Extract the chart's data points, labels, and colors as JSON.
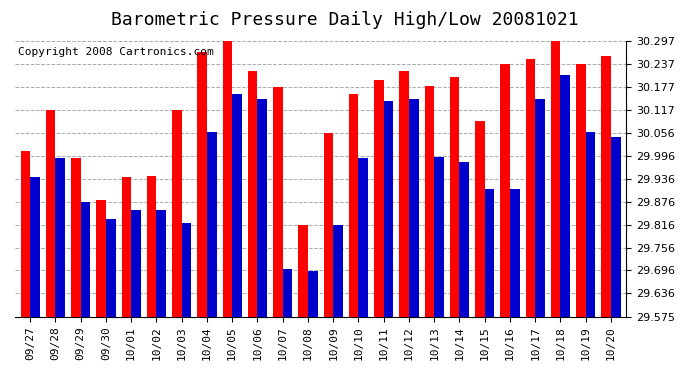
{
  "title": "Barometric Pressure Daily High/Low 20081021",
  "copyright": "Copyright 2008 Cartronics.com",
  "categories": [
    "09/27",
    "09/28",
    "09/29",
    "09/30",
    "10/01",
    "10/02",
    "10/03",
    "10/04",
    "10/05",
    "10/06",
    "10/07",
    "10/08",
    "10/09",
    "10/10",
    "10/11",
    "10/12",
    "10/13",
    "10/14",
    "10/15",
    "10/16",
    "10/17",
    "10/18",
    "10/19",
    "10/20"
  ],
  "highs": [
    30.01,
    30.117,
    29.99,
    29.88,
    29.94,
    29.945,
    30.117,
    30.27,
    30.297,
    30.22,
    30.177,
    29.815,
    30.058,
    30.16,
    30.195,
    30.22,
    30.18,
    30.205,
    30.087,
    30.237,
    30.25,
    30.297,
    30.237,
    30.26
  ],
  "lows": [
    29.94,
    29.99,
    29.875,
    29.83,
    29.855,
    29.855,
    29.82,
    30.06,
    30.16,
    30.147,
    29.7,
    29.695,
    29.815,
    29.99,
    30.14,
    30.147,
    29.995,
    29.98,
    29.91,
    29.91,
    30.147,
    30.21,
    30.06,
    30.045
  ],
  "high_color": "#ff0000",
  "low_color": "#0000cc",
  "bg_color": "#ffffff",
  "plot_bg_color": "#ffffff",
  "grid_color": "#aaaaaa",
  "ymin": 29.575,
  "ymax": 30.297,
  "yticks": [
    29.575,
    29.636,
    29.696,
    29.756,
    29.816,
    29.876,
    29.936,
    29.996,
    30.056,
    30.117,
    30.177,
    30.237,
    30.297
  ],
  "title_fontsize": 13,
  "copyright_fontsize": 8,
  "tick_fontsize": 8,
  "bar_width": 0.38
}
